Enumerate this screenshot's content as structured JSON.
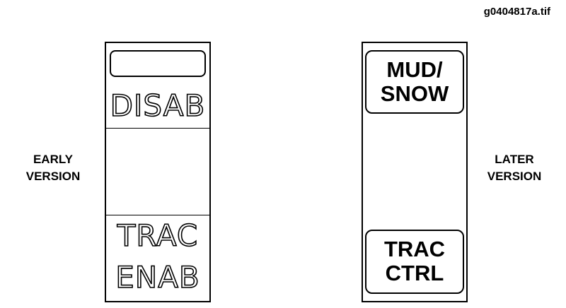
{
  "figure_id": "g0404817a.tif",
  "early": {
    "label_lines": [
      "EARLY",
      "VERSION"
    ],
    "top_text": "DISAB",
    "bottom_text_lines": [
      "TRAC",
      "ENAB"
    ]
  },
  "later": {
    "label_lines": [
      "LATER",
      "VERSION"
    ],
    "top_text_lines": [
      "MUD/",
      "SNOW"
    ],
    "bottom_text_lines": [
      "TRAC",
      "CTRL"
    ]
  }
}
